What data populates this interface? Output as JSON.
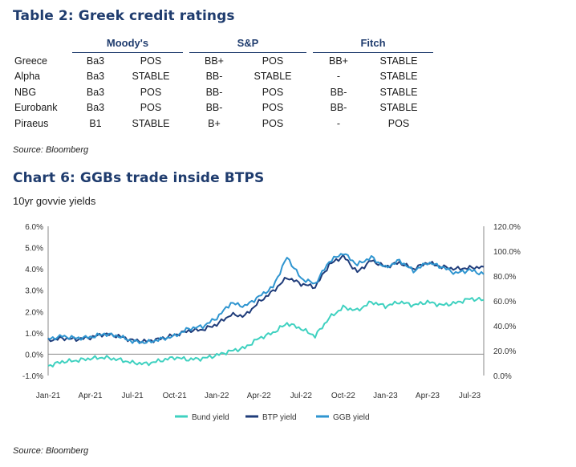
{
  "table": {
    "title": "Table 2: Greek credit ratings",
    "agencies": [
      "Moody's",
      "S&P",
      "Fitch"
    ],
    "rows": [
      {
        "name": "Greece",
        "moodys": "Ba3",
        "moodys_outlook": "POS",
        "sp": "BB+",
        "sp_outlook": "POS",
        "fitch": "BB+",
        "fitch_outlook": "STABLE"
      },
      {
        "name": "Alpha",
        "moodys": "Ba3",
        "moodys_outlook": "STABLE",
        "sp": "BB-",
        "sp_outlook": "STABLE",
        "fitch": "-",
        "fitch_outlook": "STABLE"
      },
      {
        "name": "NBG",
        "moodys": "Ba3",
        "moodys_outlook": "POS",
        "sp": "BB-",
        "sp_outlook": "POS",
        "fitch": "BB-",
        "fitch_outlook": "STABLE"
      },
      {
        "name": "Eurobank",
        "moodys": "Ba3",
        "moodys_outlook": "POS",
        "sp": "BB-",
        "sp_outlook": "POS",
        "fitch": "BB-",
        "fitch_outlook": "STABLE"
      },
      {
        "name": "Piraeus",
        "moodys": "B1",
        "moodys_outlook": "STABLE",
        "sp": "B+",
        "sp_outlook": "POS",
        "fitch": "-",
        "fitch_outlook": "POS"
      }
    ],
    "source": "Source: Bloomberg"
  },
  "chart": {
    "title": "Chart 6: GGBs trade inside BTPS",
    "subtitle": "10yr govvie yields",
    "source": "Source: Bloomberg"
  },
  "chart_data": {
    "type": "line",
    "x": [
      "2021-01",
      "2021-02",
      "2021-03",
      "2021-04",
      "2021-05",
      "2021-06",
      "2021-07",
      "2021-08",
      "2021-09",
      "2021-10",
      "2021-11",
      "2021-12",
      "2022-01",
      "2022-02",
      "2022-03",
      "2022-04",
      "2022-05",
      "2022-06",
      "2022-07",
      "2022-08",
      "2022-09",
      "2022-10",
      "2022-11",
      "2022-12",
      "2023-01",
      "2023-02",
      "2023-03",
      "2023-04",
      "2023-05",
      "2023-06",
      "2023-07",
      "2023-08"
    ],
    "x_tick_labels": [
      "Jan-21",
      "Apr-21",
      "Jul-21",
      "Oct-21",
      "Jan-22",
      "Apr-22",
      "Jul-22",
      "Oct-22",
      "Jan-23",
      "Apr-23",
      "Jul-23"
    ],
    "y_left_ticks": [
      "-1.0%",
      "0.0%",
      "1.0%",
      "2.0%",
      "3.0%",
      "4.0%",
      "5.0%",
      "6.0%"
    ],
    "y_right_ticks": [
      "0.0%",
      "20.0%",
      "40.0%",
      "60.0%",
      "80.0%",
      "100.0%",
      "120.0%"
    ],
    "ylim_left": [
      -1.0,
      6.0
    ],
    "ylim_right": [
      0.0,
      120.0
    ],
    "grid": false,
    "legend_position": "bottom",
    "series": [
      {
        "name": "Bund yield",
        "color": "#3fd1c0",
        "values": [
          -0.55,
          -0.35,
          -0.3,
          -0.2,
          -0.15,
          -0.25,
          -0.4,
          -0.45,
          -0.3,
          -0.15,
          -0.25,
          -0.2,
          -0.05,
          0.15,
          0.3,
          0.75,
          1.0,
          1.45,
          1.2,
          0.85,
          1.7,
          2.2,
          2.05,
          2.45,
          2.25,
          2.45,
          2.3,
          2.45,
          2.3,
          2.4,
          2.6,
          2.55
        ]
      },
      {
        "name": "BTP yield",
        "color": "#1f3c7a",
        "values": [
          0.65,
          0.75,
          0.7,
          0.78,
          0.95,
          0.85,
          0.65,
          0.6,
          0.72,
          0.9,
          1.1,
          1.15,
          1.4,
          1.85,
          1.8,
          2.45,
          2.95,
          3.6,
          3.3,
          3.15,
          4.2,
          4.6,
          3.85,
          4.4,
          4.1,
          4.3,
          4.0,
          4.3,
          4.1,
          4.0,
          4.05,
          4.1
        ]
      },
      {
        "name": "GGB yield",
        "color": "#2f95d0",
        "values": [
          0.7,
          0.85,
          0.75,
          0.8,
          0.95,
          0.85,
          0.6,
          0.55,
          0.7,
          0.85,
          1.2,
          1.3,
          1.7,
          2.4,
          2.25,
          2.7,
          3.15,
          4.55,
          3.55,
          3.3,
          4.35,
          4.75,
          4.2,
          4.55,
          4.05,
          4.4,
          3.9,
          4.3,
          4.1,
          3.8,
          3.95,
          3.75
        ]
      }
    ]
  }
}
